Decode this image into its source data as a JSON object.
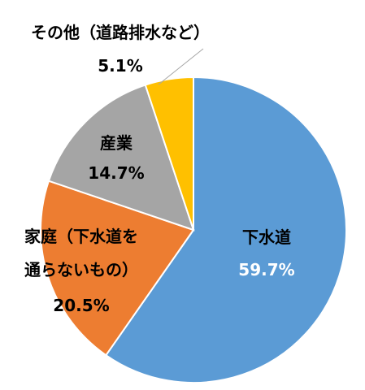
{
  "chart_data": {
    "type": "pie",
    "title": "",
    "slices": [
      {
        "label": "下水道",
        "value": 59.7,
        "value_label": "59.7%",
        "color": "#5b9bd5"
      },
      {
        "label": "家庭（下水道を通らないもの）",
        "label_lines": [
          "家庭（下水道を",
          "通らないもの）"
        ],
        "value": 20.5,
        "value_label": "20.5%",
        "color": "#ed7d31"
      },
      {
        "label": "産業",
        "value": 14.7,
        "value_label": "14.7%",
        "color": "#a5a5a5"
      },
      {
        "label": "その他（道路排水など）",
        "value": 5.1,
        "value_label": "5.1%",
        "color": "#ffc000"
      }
    ],
    "start_angle_deg": 0,
    "direction": "clockwise",
    "legend": "none"
  }
}
